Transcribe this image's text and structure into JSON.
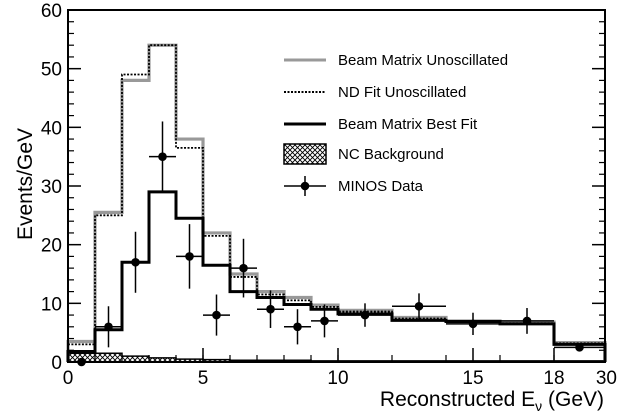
{
  "chart_data": {
    "type": "line",
    "xlabel": "Reconstructed E",
    "xlabel_sub": "ν",
    "xlabel_unit": " (GeV)",
    "ylabel": "Events/GeV",
    "xlim": [
      0,
      30
    ],
    "ylim": [
      0,
      60
    ],
    "x_scale": "piecewise (0-5 GeV uniform, 5-10, 10-15, 15-18, 18-30)",
    "x_ticks": [
      0,
      5,
      10,
      15,
      18,
      30
    ],
    "x_tick_labels": [
      "0",
      "5",
      "10",
      "15",
      "18",
      "30"
    ],
    "y_ticks": [
      0,
      10,
      20,
      30,
      40,
      50,
      60
    ],
    "y_tick_labels": [
      "0",
      "10",
      "20",
      "30",
      "40",
      "50",
      "60"
    ],
    "grid": false,
    "legend_position": "top-right",
    "bin_edges": [
      0,
      1,
      2,
      3,
      4,
      5,
      6,
      7,
      8,
      9,
      10,
      12,
      14,
      16,
      18,
      30
    ],
    "series": [
      {
        "name": "Beam Matrix Unoscillated",
        "style": "histogram",
        "color": "#999999",
        "values": [
          3.5,
          25.5,
          48.0,
          54.0,
          38.0,
          22.0,
          15.0,
          12.0,
          11.0,
          9.7,
          8.8,
          7.6,
          7.0,
          6.8,
          3.3
        ]
      },
      {
        "name": "ND Fit Unoscillated",
        "style": "histogram-dotted",
        "color": "#000000",
        "values": [
          3.0,
          25.0,
          49.0,
          54.0,
          36.5,
          21.5,
          14.5,
          11.5,
          10.5,
          9.4,
          8.6,
          7.4,
          6.9,
          6.6,
          3.2
        ]
      },
      {
        "name": "Beam Matrix Best Fit",
        "style": "histogram",
        "color": "#000000",
        "values": [
          1.8,
          5.5,
          17.0,
          29.0,
          24.5,
          16.5,
          12.0,
          11.0,
          9.8,
          9.0,
          8.2,
          7.1,
          6.9,
          6.5,
          3.0
        ]
      },
      {
        "name": "NC Background",
        "style": "hatched-fill",
        "color": "#000000",
        "values": [
          1.5,
          1.5,
          1.0,
          0.7,
          0.5,
          0.4,
          0.3,
          0.3,
          0.3,
          0.2,
          0.2,
          0.2,
          0.2,
          0.2,
          0.2
        ]
      },
      {
        "name": "MINOS Data",
        "style": "points-with-errors",
        "color": "#000000",
        "points": [
          {
            "x": 0.5,
            "y": 0,
            "xerr": 0.5,
            "yerr": 0
          },
          {
            "x": 1.5,
            "y": 6.0,
            "xerr": 0.5,
            "yerr": 3.5
          },
          {
            "x": 2.5,
            "y": 17.0,
            "xerr": 0.5,
            "yerr": 5.2
          },
          {
            "x": 3.5,
            "y": 35.0,
            "xerr": 0.5,
            "yerr": 6.0
          },
          {
            "x": 4.5,
            "y": 18.0,
            "xerr": 0.5,
            "yerr": 5.5
          },
          {
            "x": 5.5,
            "y": 8.0,
            "xerr": 0.5,
            "yerr": 3.5
          },
          {
            "x": 6.5,
            "y": 16.0,
            "xerr": 0.5,
            "yerr": 5.0
          },
          {
            "x": 7.5,
            "y": 9.0,
            "xerr": 0.5,
            "yerr": 3.2
          },
          {
            "x": 8.5,
            "y": 6.0,
            "xerr": 0.5,
            "yerr": 3.0
          },
          {
            "x": 9.5,
            "y": 7.0,
            "xerr": 0.5,
            "yerr": 2.8
          },
          {
            "x": 11.0,
            "y": 8.0,
            "xerr": 1.0,
            "yerr": 2.0
          },
          {
            "x": 13.0,
            "y": 9.5,
            "xerr": 1.0,
            "yerr": 2.2
          },
          {
            "x": 15.0,
            "y": 6.5,
            "xerr": 1.0,
            "yerr": 1.9
          },
          {
            "x": 17.0,
            "y": 7.0,
            "xerr": 1.0,
            "yerr": 2.2
          },
          {
            "x": 24.0,
            "y": 2.5,
            "xerr": 6.0,
            "yerr": 0.5
          }
        ]
      }
    ]
  }
}
